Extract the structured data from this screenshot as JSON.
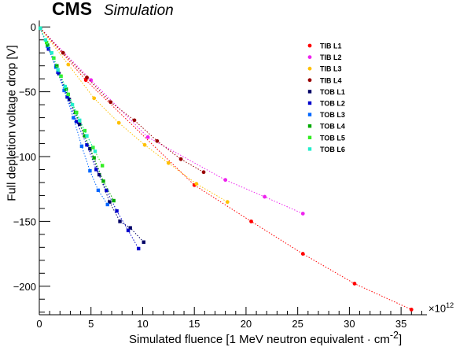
{
  "header": {
    "cms": "CMS",
    "subtitle": "Simulation"
  },
  "axes": {
    "xlabel": "Simulated fluence [1 MeV neutron equivalent · cm",
    "xlabel_sup": "-2",
    "xlabel_end": "]",
    "ylabel": "Full depletion voltage drop [V]",
    "x_multiplier": "×10",
    "x_multiplier_exp": "12"
  },
  "chart_data": {
    "type": "scatter",
    "title": "",
    "xlabel": "Simulated fluence [1 MeV neutron equivalent · cm-2]",
    "ylabel": "Full depletion voltage drop [V]",
    "x_scale_note": "×10^12",
    "xlim": [
      0,
      37.5
    ],
    "ylim": [
      -222,
      5
    ],
    "xticks": [
      0,
      5,
      10,
      15,
      20,
      25,
      30,
      35
    ],
    "yticks": [
      0,
      -50,
      -100,
      -150,
      -200
    ],
    "ytick_labels": [
      "0",
      "−50",
      "−100",
      "−150",
      "−200"
    ],
    "grid": false,
    "legend_position": "top-right",
    "series": [
      {
        "name": "TIB  L1",
        "color": "#ff0000",
        "x": [
          0.1,
          4.5,
          15.0,
          20.5,
          25.5,
          30.5,
          36.0
        ],
        "y": [
          -1,
          -41,
          -122,
          -150,
          -175,
          -198,
          -218
        ]
      },
      {
        "name": "TIB  L2",
        "color": "#ee22ee",
        "x": [
          0.1,
          5.0,
          10.5,
          18.0,
          21.8,
          25.5
        ],
        "y": [
          -1,
          -41,
          -85,
          -118,
          -131,
          -144
        ]
      },
      {
        "name": "TIB  L3",
        "color": "#ffc000",
        "x": [
          0.1,
          2.8,
          5.3,
          7.7,
          10.2,
          12.5,
          15.2,
          18.2
        ],
        "y": [
          -1,
          -29,
          -55,
          -74,
          -91,
          -105,
          -121,
          -135
        ]
      },
      {
        "name": "TIB  L4",
        "color": "#990000",
        "x": [
          0.1,
          2.3,
          4.6,
          6.9,
          9.2,
          11.4,
          13.7,
          15.9
        ],
        "y": [
          -1,
          -20,
          -39,
          -58,
          -72,
          -88,
          -102,
          -112
        ]
      },
      {
        "name": "TOB  L1",
        "color": "#000066",
        "x": [
          0.1,
          0.9,
          1.9,
          2.9,
          3.9,
          4.9,
          5.8,
          6.8,
          7.8,
          8.8,
          10.1
        ],
        "y": [
          -1,
          -17,
          -36,
          -56,
          -75,
          -94,
          -114,
          -135,
          -150,
          -155,
          -166
        ]
      },
      {
        "name": "TOB  L2",
        "color": "#0000cc",
        "x": [
          0.1,
          0.9,
          1.8,
          2.7,
          3.6,
          4.6,
          5.5,
          6.5,
          7.5,
          8.6,
          9.6
        ],
        "y": [
          -1,
          -17,
          -35,
          -54,
          -73,
          -91,
          -110,
          -126,
          -142,
          -157,
          -171
        ]
      },
      {
        "name": "TOB  L3",
        "color": "#0066ff",
        "x": [
          0.1,
          0.8,
          1.6,
          2.4,
          3.3,
          4.1,
          4.9,
          5.7,
          6.6
        ],
        "y": [
          -1,
          -15,
          -31,
          -49,
          -70,
          -92,
          -111,
          -126,
          -137
        ]
      },
      {
        "name": "TOB  L4",
        "color": "#00aa00",
        "x": [
          0.1,
          0.8,
          1.7,
          2.6,
          3.5,
          4.4,
          5.3,
          6.2,
          7.2
        ],
        "y": [
          -1,
          -14,
          -30,
          -48,
          -66,
          -84,
          -101,
          -119,
          -134
        ]
      },
      {
        "name": "TOB  L5",
        "color": "#33ee22",
        "x": [
          0.1,
          0.7,
          1.4,
          2.1,
          2.8,
          3.6,
          4.4,
          5.2,
          6.1
        ],
        "y": [
          -1,
          -12,
          -24,
          -38,
          -52,
          -66,
          -80,
          -93,
          -107
        ]
      },
      {
        "name": "TOB  L6",
        "color": "#22eecc",
        "x": [
          0.1,
          0.6,
          1.2,
          1.8,
          2.5,
          3.2,
          3.9,
          4.6,
          5.4
        ],
        "y": [
          -1,
          -10,
          -20,
          -33,
          -46,
          -60,
          -72,
          -84,
          -96
        ]
      }
    ]
  }
}
